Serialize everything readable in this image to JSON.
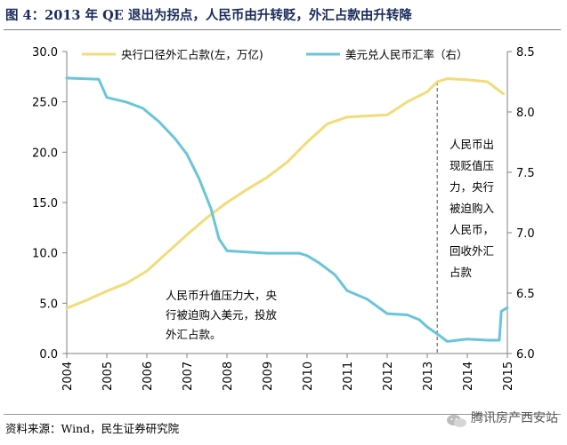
{
  "title": "图 4：2013 年 QE 退出为拐点，人民币由升转贬，外汇占款由升转降",
  "footer_source": "资料来源：Wind，民生证券研究院",
  "watermark": "腾讯房产西安站",
  "colors": {
    "yellow": "#f2dc78",
    "blue": "#69c5d9",
    "dash": "#8a8a8a",
    "title": "#1a2a5a"
  },
  "chart_data": {
    "type": "line",
    "x_range": [
      2004,
      2015
    ],
    "x_ticks": [
      "2004",
      "2005",
      "2006",
      "2007",
      "2008",
      "2009",
      "2010",
      "2011",
      "2012",
      "2013",
      "2014",
      "2015"
    ],
    "y_left": {
      "range": [
        0,
        30
      ],
      "ticks": [
        "0.0",
        "5.0",
        "10.0",
        "15.0",
        "20.0",
        "25.0",
        "30.0"
      ],
      "unit": "万亿"
    },
    "y_right": {
      "range": [
        6.0,
        8.5
      ],
      "ticks": [
        "6.0",
        "6.5",
        "7.0",
        "7.5",
        "8.0",
        "8.5"
      ]
    },
    "series": [
      {
        "name": "央行口径外汇占款(左，万亿)",
        "axis": "left",
        "color": "#f2dc78",
        "x": [
          2004.0,
          2004.5,
          2005.0,
          2005.5,
          2006.0,
          2006.5,
          2007.0,
          2007.5,
          2008.0,
          2008.5,
          2009.0,
          2009.5,
          2010.0,
          2010.5,
          2011.0,
          2011.5,
          2012.0,
          2012.5,
          2013.0,
          2013.25,
          2013.5,
          2014.0,
          2014.5,
          2014.9
        ],
        "values": [
          4.5,
          5.3,
          6.2,
          7.0,
          8.2,
          10.0,
          11.8,
          13.5,
          15.0,
          16.3,
          17.5,
          19.0,
          21.0,
          22.8,
          23.5,
          23.6,
          23.7,
          25.0,
          26.0,
          27.0,
          27.3,
          27.2,
          27.0,
          25.8
        ]
      },
      {
        "name": "美元兑人民币汇率（右）",
        "axis": "right",
        "color": "#69c5d9",
        "x": [
          2004.0,
          2004.8,
          2005.0,
          2005.5,
          2005.9,
          2006.3,
          2006.7,
          2007.0,
          2007.3,
          2007.6,
          2007.8,
          2008.0,
          2008.5,
          2009.0,
          2009.8,
          2010.0,
          2010.3,
          2010.7,
          2011.0,
          2011.5,
          2012.0,
          2012.5,
          2012.8,
          2013.0,
          2013.3,
          2013.5,
          2014.0,
          2014.5,
          2014.8,
          2014.85,
          2014.95,
          2015.0
        ],
        "values": [
          8.28,
          8.27,
          8.12,
          8.08,
          8.03,
          7.92,
          7.78,
          7.65,
          7.45,
          7.2,
          6.95,
          6.85,
          6.84,
          6.83,
          6.83,
          6.81,
          6.75,
          6.65,
          6.52,
          6.45,
          6.33,
          6.32,
          6.28,
          6.22,
          6.15,
          6.1,
          6.12,
          6.11,
          6.11,
          6.35,
          6.37,
          6.38
        ]
      }
    ],
    "marker_line": {
      "x": 2013.25,
      "style": "dashed"
    },
    "annotations": [
      {
        "lines": [
          "人民币升值压力大，央",
          "行被迫购入美元，投放",
          "外汇占款。"
        ]
      },
      {
        "lines": [
          "人民币出",
          "现贬值压",
          "力，央行",
          "被迫购入",
          "人民币，",
          "回收外汇",
          "占款"
        ]
      }
    ]
  }
}
